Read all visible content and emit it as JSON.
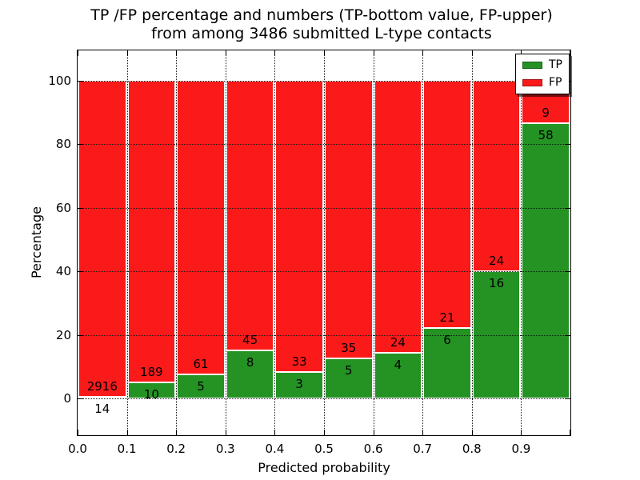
{
  "title": {
    "line1": "TP /FP percentage and numbers (TP-bottom value, FP-upper)",
    "line2": "from among 3486 submitted L-type contacts"
  },
  "axes": {
    "xlabel": "Predicted probability",
    "ylabel": "Percentage",
    "x_tick_labels": [
      "0.0",
      "0.1",
      "0.2",
      "0.3",
      "0.4",
      "0.5",
      "0.6",
      "0.7",
      "0.8",
      "0.9"
    ],
    "y_tick_labels": [
      "0",
      "20",
      "40",
      "60",
      "80",
      "100"
    ],
    "y_tick_values": [
      0,
      20,
      40,
      60,
      80,
      100
    ]
  },
  "legend": {
    "position": "upper right",
    "items": [
      {
        "label": "TP",
        "color": "#249324"
      },
      {
        "label": "FP",
        "color": "#fb1a1a"
      }
    ]
  },
  "colors": {
    "tp": "#249324",
    "fp": "#fb1a1a",
    "grid": "#1a1a1a",
    "axes": "#000000",
    "background": "#ffffff"
  },
  "chart_data": {
    "type": "bar",
    "stacked": true,
    "title": "TP /FP percentage and numbers (TP-bottom value, FP-upper) from among 3486 submitted L-type contacts",
    "xlabel": "Predicted probability",
    "ylabel": "Percentage",
    "total_submitted": 3486,
    "bin_width": 0.1,
    "x_bins": [
      0.0,
      0.1,
      0.2,
      0.3,
      0.4,
      0.5,
      0.6,
      0.7,
      0.8,
      0.9
    ],
    "series": [
      {
        "name": "TP",
        "counts": [
          14,
          10,
          5,
          8,
          3,
          5,
          4,
          6,
          16,
          58
        ],
        "pct": [
          0.48,
          5.03,
          7.58,
          15.09,
          8.33,
          12.5,
          14.29,
          22.22,
          40.0,
          86.57
        ]
      },
      {
        "name": "FP",
        "counts": [
          2916,
          189,
          61,
          45,
          33,
          35,
          24,
          21,
          24,
          9
        ],
        "pct": [
          99.52,
          94.97,
          92.42,
          84.91,
          91.67,
          87.5,
          85.71,
          77.78,
          60.0,
          13.43
        ]
      }
    ],
    "xlim": [
      0.0,
      1.0
    ],
    "ylim": [
      -11.6,
      109.6
    ],
    "grid": "dotted both axes",
    "legend_position": "upper right"
  }
}
